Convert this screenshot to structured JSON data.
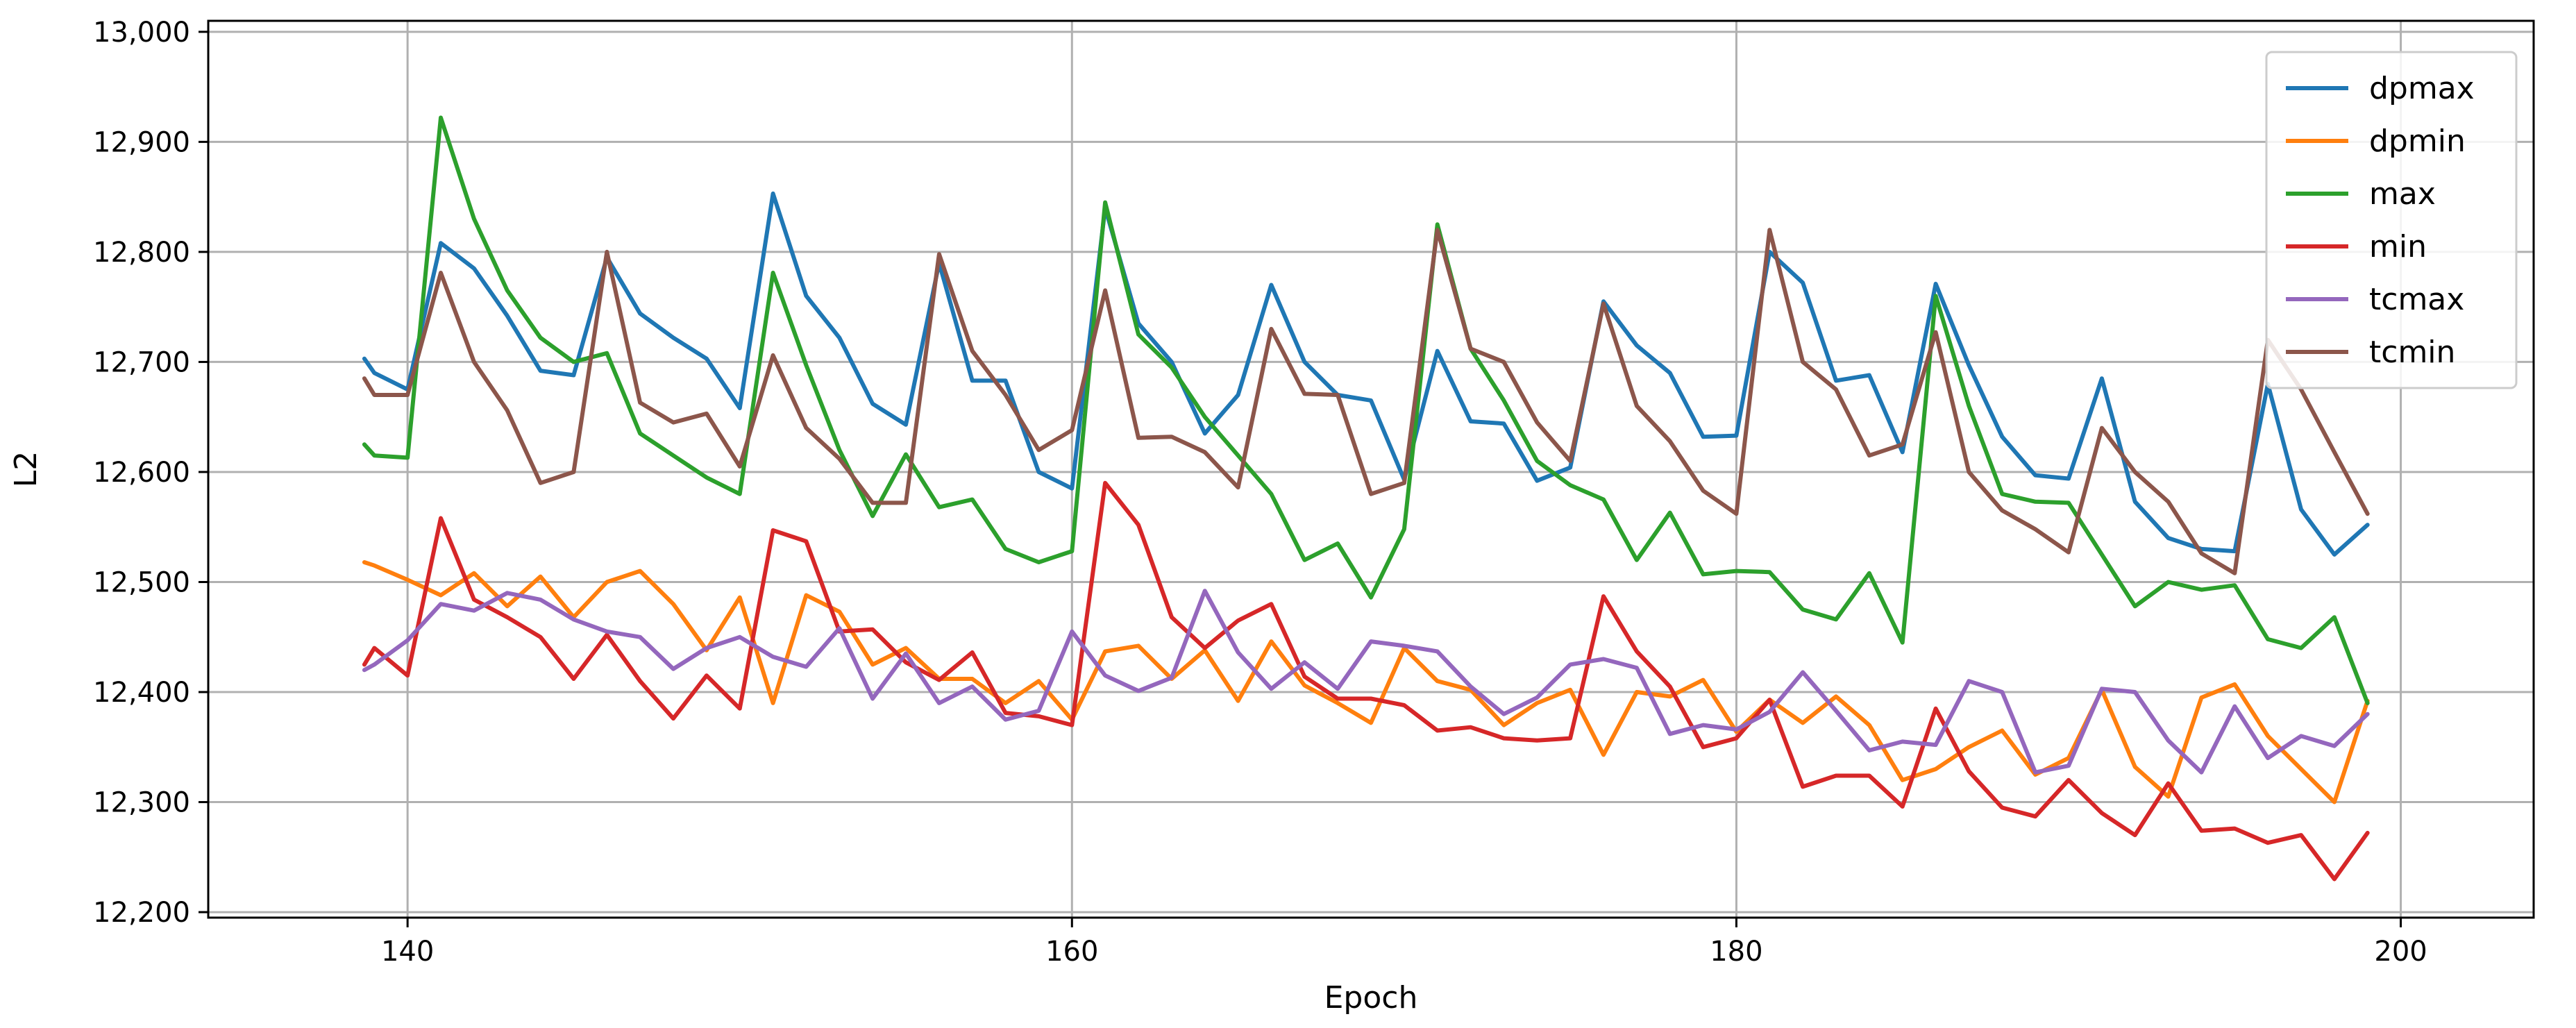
{
  "chart_data": {
    "type": "line",
    "title": "",
    "xlabel": "Epoch",
    "ylabel": "L2",
    "xlim": [
      134,
      204
    ],
    "ylim": [
      12195,
      13010
    ],
    "x_ticks": [
      140,
      160,
      180,
      200
    ],
    "x_tick_labels": [
      "140",
      "160",
      "180",
      "200"
    ],
    "y_ticks": [
      12200,
      12300,
      12400,
      12500,
      12600,
      12700,
      12800,
      12900,
      13000
    ],
    "y_tick_labels": [
      "12,200",
      "12,300",
      "12,400",
      "12,500",
      "12,600",
      "12,700",
      "12,800",
      "12,900",
      "13,000"
    ],
    "grid": true,
    "legend_position": "top-right",
    "x": [
      138.7,
      139,
      140,
      141,
      142,
      143,
      144,
      145,
      146,
      147,
      148,
      149,
      150,
      151,
      152,
      153,
      154,
      155,
      156,
      157,
      158,
      159,
      160,
      161,
      162,
      163,
      164,
      165,
      166,
      167,
      168,
      169,
      170,
      171,
      172,
      173,
      174,
      175,
      176,
      177,
      178,
      179,
      180,
      181,
      182,
      183,
      184,
      185,
      186,
      187,
      188,
      189,
      190,
      191,
      192,
      193,
      194,
      195,
      196,
      197,
      198,
      199
    ],
    "series": [
      {
        "name": "dpmax",
        "color": "#1f77b4",
        "values": [
          12703,
          12690,
          12675,
          12808,
          12785,
          12742,
          12692,
          12688,
          12795,
          12744,
          12722,
          12703,
          12658,
          12853,
          12760,
          12722,
          12662,
          12643,
          12790,
          12683,
          12683,
          12600,
          12585,
          12840,
          12735,
          12700,
          12635,
          12670,
          12770,
          12700,
          12670,
          12665,
          12593,
          12710,
          12646,
          12644,
          12592,
          12604,
          12755,
          12715,
          12690,
          12632,
          12633,
          12800,
          12772,
          12683,
          12688,
          12618,
          12771,
          12697,
          12632,
          12597,
          12594,
          12685,
          12573,
          12540,
          12530,
          12528,
          12680,
          12566,
          12525,
          12552
        ]
      },
      {
        "name": "dpmin",
        "color": "#ff7f0e",
        "values": [
          12518,
          12515,
          12502,
          12488,
          12508,
          12478,
          12505,
          12468,
          12500,
          12510,
          12480,
          12438,
          12486,
          12390,
          12488,
          12473,
          12425,
          12440,
          12412,
          12412,
          12390,
          12410,
          12375,
          12437,
          12442,
          12412,
          12438,
          12392,
          12446,
          12406,
          12390,
          12372,
          12440,
          12410,
          12402,
          12370,
          12390,
          12402,
          12343,
          12400,
          12396,
          12411,
          12364,
          12393,
          12372,
          12396,
          12370,
          12320,
          12330,
          12350,
          12365,
          12325,
          12340,
          12402,
          12332,
          12305,
          12395,
          12407,
          12360,
          12330,
          12300,
          12392
        ]
      },
      {
        "name": "max",
        "color": "#2ca02c",
        "values": [
          12625,
          12615,
          12613,
          12922,
          12830,
          12765,
          12722,
          12700,
          12708,
          12635,
          12615,
          12595,
          12580,
          12781,
          12697,
          12620,
          12560,
          12616,
          12568,
          12575,
          12530,
          12518,
          12528,
          12845,
          12725,
          12695,
          12650,
          12615,
          12580,
          12520,
          12535,
          12486,
          12548,
          12825,
          12712,
          12665,
          12610,
          12588,
          12575,
          12520,
          12563,
          12507,
          12510,
          12509,
          12475,
          12466,
          12508,
          12445,
          12760,
          12660,
          12580,
          12573,
          12572,
          12525,
          12478,
          12500,
          12493,
          12497,
          12448,
          12440,
          12468,
          12390
        ]
      },
      {
        "name": "min",
        "color": "#d62728",
        "values": [
          12425,
          12440,
          12415,
          12558,
          12484,
          12468,
          12450,
          12412,
          12452,
          12410,
          12376,
          12415,
          12385,
          12547,
          12537,
          12455,
          12457,
          12427,
          12411,
          12436,
          12381,
          12378,
          12370,
          12590,
          12552,
          12468,
          12440,
          12465,
          12480,
          12414,
          12394,
          12394,
          12388,
          12365,
          12368,
          12358,
          12356,
          12358,
          12487,
          12437,
          12405,
          12350,
          12358,
          12393,
          12314,
          12324,
          12324,
          12296,
          12385,
          12328,
          12295,
          12287,
          12320,
          12290,
          12270,
          12317,
          12274,
          12276,
          12263,
          12270,
          12230,
          12272
        ]
      },
      {
        "name": "tcmax",
        "color": "#9467bd",
        "values": [
          12420,
          12425,
          12447,
          12480,
          12474,
          12490,
          12484,
          12466,
          12455,
          12450,
          12421,
          12440,
          12450,
          12432,
          12423,
          12458,
          12394,
          12435,
          12390,
          12405,
          12375,
          12383,
          12455,
          12415,
          12401,
          12413,
          12492,
          12436,
          12403,
          12427,
          12403,
          12446,
          12442,
          12437,
          12405,
          12380,
          12395,
          12425,
          12430,
          12422,
          12362,
          12370,
          12366,
          12382,
          12418,
          12383,
          12347,
          12355,
          12352,
          12410,
          12400,
          12327,
          12333,
          12403,
          12400,
          12356,
          12327,
          12387,
          12340,
          12360,
          12351,
          12380
        ]
      },
      {
        "name": "tcmin",
        "color": "#8c564b",
        "values": [
          12685,
          12670,
          12670,
          12781,
          12700,
          12656,
          12590,
          12600,
          12800,
          12663,
          12645,
          12653,
          12605,
          12706,
          12640,
          12612,
          12572,
          12572,
          12798,
          12710,
          12670,
          12620,
          12638,
          12765,
          12631,
          12632,
          12618,
          12586,
          12730,
          12671,
          12670,
          12580,
          12590,
          12820,
          12712,
          12700,
          12645,
          12610,
          12753,
          12660,
          12628,
          12583,
          12562,
          12820,
          12700,
          12675,
          12615,
          12625,
          12727,
          12600,
          12565,
          12548,
          12527,
          12640,
          12600,
          12573,
          12526,
          12508,
          12720,
          12675,
          12618,
          12562
        ]
      }
    ]
  }
}
